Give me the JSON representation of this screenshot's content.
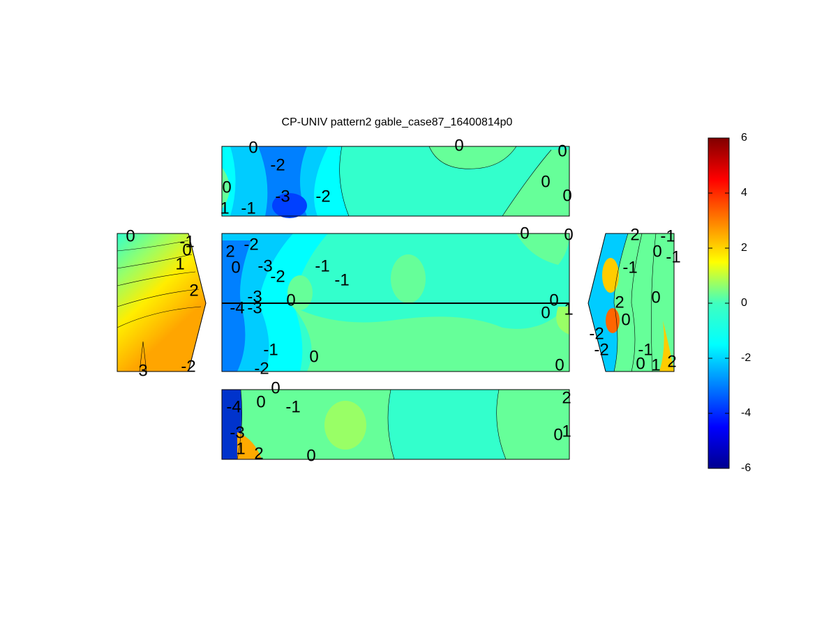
{
  "chart_data": {
    "type": "contour",
    "title": "CP-UNIV pattern2 gable_case87_16400814p0",
    "colorbar": {
      "colormap": "jet",
      "lim": [
        -6,
        6
      ],
      "ticks": [
        -6,
        -4,
        -2,
        0,
        2,
        4,
        6
      ]
    },
    "panels": [
      {
        "contour_labels": [
          0,
          -2,
          0,
          0,
          0,
          0,
          0,
          -3,
          -2,
          1,
          -1
        ]
      },
      {
        "contour_labels": [
          0,
          -1,
          0,
          1,
          2,
          3,
          -2
        ]
      },
      {
        "contour_labels": [
          0,
          0,
          2,
          -2,
          0,
          -3,
          -2,
          -1,
          -1,
          -3,
          -4,
          -3,
          0,
          0,
          0,
          1,
          -1,
          0,
          -2,
          0
        ]
      },
      {
        "contour_labels": [
          -1,
          2,
          -1,
          0,
          -1,
          0,
          -2,
          -2,
          -1,
          0,
          1,
          2,
          2,
          0
        ]
      },
      {
        "contour_labels": [
          0,
          0,
          -1,
          2,
          0,
          1,
          2,
          0,
          -4,
          -3,
          1
        ]
      }
    ]
  }
}
